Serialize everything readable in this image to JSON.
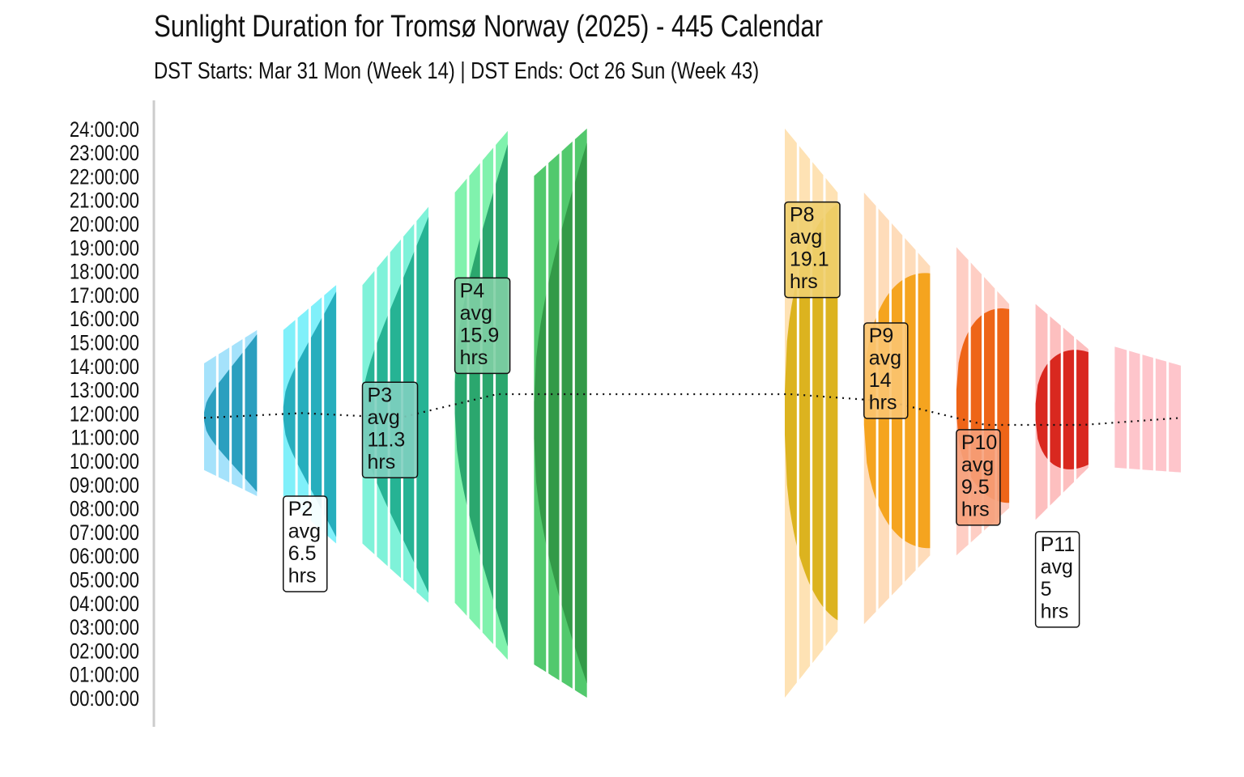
{
  "chart_data": {
    "type": "area",
    "title": "Sunlight Duration for Tromsø Norway (2025) - 445 Calendar",
    "subtitle": "DST Starts: Mar 31 Mon (Week 14) | DST Ends: Oct 26 Sun (Week 43)",
    "xlabel": "",
    "ylabel": "",
    "y_range_hours": [
      0,
      24
    ],
    "y_ticks": [
      "00:00:00",
      "01:00:00",
      "02:00:00",
      "03:00:00",
      "04:00:00",
      "05:00:00",
      "06:00:00",
      "07:00:00",
      "08:00:00",
      "09:00:00",
      "10:00:00",
      "11:00:00",
      "12:00:00",
      "13:00:00",
      "14:00:00",
      "15:00:00",
      "16:00:00",
      "17:00:00",
      "18:00:00",
      "19:00:00",
      "20:00:00",
      "21:00:00",
      "22:00:00",
      "23:00:00",
      "24:00:00"
    ],
    "x_axis_visible": false,
    "grid": false,
    "legend": "none",
    "week_segments": 52,
    "midday_line_hours": [
      11.8,
      12.0,
      11.8,
      12.8,
      12.8,
      12.8,
      12.8,
      12.5,
      11.5,
      11.5,
      11.8
    ],
    "periods": [
      {
        "name": "P1",
        "weeks": 4,
        "color_light": "#a5e2fb",
        "color_dark": "#2b9fbf",
        "rise_start": 9.6,
        "rise_end": 8.5,
        "set_start": 14.1,
        "set_end": 15.5
      },
      {
        "name": "P2",
        "weeks": 4,
        "color_light": "#80f0fa",
        "color_dark": "#26aebd",
        "rise_start": 8.5,
        "rise_end": 6.5,
        "set_start": 15.5,
        "set_end": 17.4,
        "avg_hours": 6.5
      },
      {
        "name": "P3",
        "weeks": 5,
        "color_light": "#7ff2d9",
        "color_dark": "#26b394",
        "rise_start": 6.5,
        "rise_end": 4.0,
        "set_start": 17.4,
        "set_end": 20.7,
        "avg_hours": 11.3
      },
      {
        "name": "P4",
        "weeks": 4,
        "color_light": "#80f2ad",
        "color_dark": "#2ba76e",
        "rise_start": 4.0,
        "rise_end": 1.6,
        "set_start": 21.3,
        "set_end": 23.9,
        "avg_hours": 15.9
      },
      {
        "name": "P5",
        "weeks": 4,
        "color_light": "#52c96d",
        "color_dark": "#339a48",
        "rise_start": 1.4,
        "rise_end": 0.0,
        "set_start": 22.0,
        "set_end": 24.0
      },
      {
        "name": "P6",
        "weeks": 5,
        "color_light": "#ffffff",
        "color_dark": "#ffffff",
        "rise_start": 0.0,
        "rise_end": 0.0,
        "set_start": 24.0,
        "set_end": 24.0
      },
      {
        "name": "P7",
        "weeks": 4,
        "color_light": "#ffffff",
        "color_dark": "#ffffff",
        "rise_start": 0.0,
        "rise_end": 0.0,
        "set_start": 24.0,
        "set_end": 24.0
      },
      {
        "name": "P8",
        "weeks": 4,
        "color_light": "#fee2b4",
        "color_dark": "#dcb31f",
        "rise_start": 0.0,
        "rise_end": 2.8,
        "set_start": 24.0,
        "set_end": 21.3,
        "avg_hours": 19.1
      },
      {
        "name": "P9",
        "weeks": 5,
        "color_light": "#fedcba",
        "color_dark": "#f5a41f",
        "rise_start": 3.1,
        "rise_end": 6.0,
        "set_start": 21.3,
        "set_end": 18.2,
        "avg_hours": 14
      },
      {
        "name": "P10",
        "weeks": 4,
        "color_light": "#fecec4",
        "color_dark": "#ee6518",
        "rise_start": 6.0,
        "rise_end": 8.0,
        "set_start": 19.0,
        "set_end": 16.6,
        "avg_hours": 9.5
      },
      {
        "name": "P11",
        "weeks": 4,
        "color_light": "#fdbfbf",
        "color_dark": "#d9281f",
        "rise_start": 7.5,
        "rise_end": 9.7,
        "set_start": 16.6,
        "set_end": 14.7,
        "avg_hours": 5
      },
      {
        "name": "P12",
        "weeks": 5,
        "color_light": "#fec5cb",
        "color_dark": "#fec5cb",
        "rise_start": 9.7,
        "rise_end": 9.5,
        "set_start": 14.8,
        "set_end": 14.0
      }
    ],
    "annotations": [
      {
        "period": "P2",
        "lines": [
          "P2",
          "avg",
          "6.5",
          "hrs"
        ],
        "y_top": 8.5,
        "fill": "#ffffff"
      },
      {
        "period": "P3",
        "lines": [
          "P3",
          "avg",
          "11.3",
          "hrs"
        ],
        "y_top": 13.3,
        "fill": "#7fcfbf"
      },
      {
        "period": "P4",
        "lines": [
          "P4",
          "avg",
          "15.9",
          "hrs"
        ],
        "y_top": 17.7,
        "fill": "#7fcfa4"
      },
      {
        "period": "P8",
        "lines": [
          "P8",
          "avg",
          "19.1",
          "hrs"
        ],
        "y_top": 20.9,
        "fill": "#f0cf6e"
      },
      {
        "period": "P9",
        "lines": [
          "P9",
          "avg",
          "14",
          "hrs"
        ],
        "y_top": 15.8,
        "fill": "#fbc470"
      },
      {
        "period": "P10",
        "lines": [
          "P10",
          "avg",
          "9.5",
          "hrs"
        ],
        "y_top": 11.3,
        "fill": "#f6a07a"
      },
      {
        "period": "P11",
        "lines": [
          "P11",
          "avg",
          "5",
          "hrs"
        ],
        "y_top": 7.0,
        "fill": "#ffffff"
      }
    ]
  }
}
